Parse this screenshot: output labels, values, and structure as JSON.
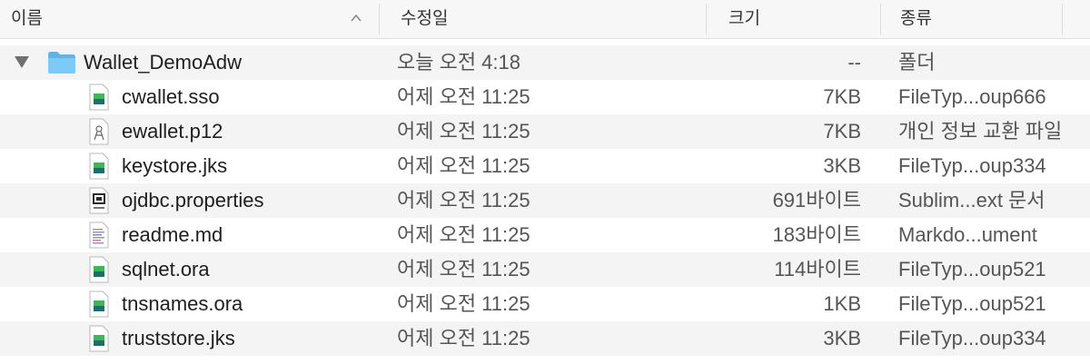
{
  "columns": {
    "name": "이름",
    "date": "수정일",
    "size": "크기",
    "kind": "종류"
  },
  "folder": {
    "name": "Wallet_DemoAdw",
    "date": "오늘 오전 4:18",
    "size": "--",
    "kind": "폴더",
    "icon": "folder-icon"
  },
  "files": [
    {
      "name": "cwallet.sso",
      "date": "어제 오전 11:25",
      "size": "7KB",
      "kind": "FileTyp...oup666",
      "icon": "generic-file-icon"
    },
    {
      "name": "ewallet.p12",
      "date": "어제 오전 11:25",
      "size": "7KB",
      "kind": "개인 정보 교환 파일",
      "icon": "certificate-file-icon"
    },
    {
      "name": "keystore.jks",
      "date": "어제 오전 11:25",
      "size": "3KB",
      "kind": "FileTyp...oup334",
      "icon": "generic-file-icon"
    },
    {
      "name": "ojdbc.properties",
      "date": "어제 오전 11:25",
      "size": "691바이트",
      "kind": "Sublim...ext 문서",
      "icon": "java-file-icon"
    },
    {
      "name": "readme.md",
      "date": "어제 오전 11:25",
      "size": "183바이트",
      "kind": "Markdo...ument",
      "icon": "text-file-icon"
    },
    {
      "name": "sqlnet.ora",
      "date": "어제 오전 11:25",
      "size": "114바이트",
      "kind": "FileTyp...oup521",
      "icon": "generic-file-icon"
    },
    {
      "name": "tnsnames.ora",
      "date": "어제 오전 11:25",
      "size": "1KB",
      "kind": "FileTyp...oup521",
      "icon": "generic-file-icon"
    },
    {
      "name": "truststore.jks",
      "date": "어제 오전 11:25",
      "size": "3KB",
      "kind": "FileTyp...oup334",
      "icon": "generic-file-icon"
    }
  ],
  "colors": {
    "folder": "#6cc0f0",
    "file-green-top": "#3fb65a",
    "file-green-bottom": "#1e6e6a"
  }
}
